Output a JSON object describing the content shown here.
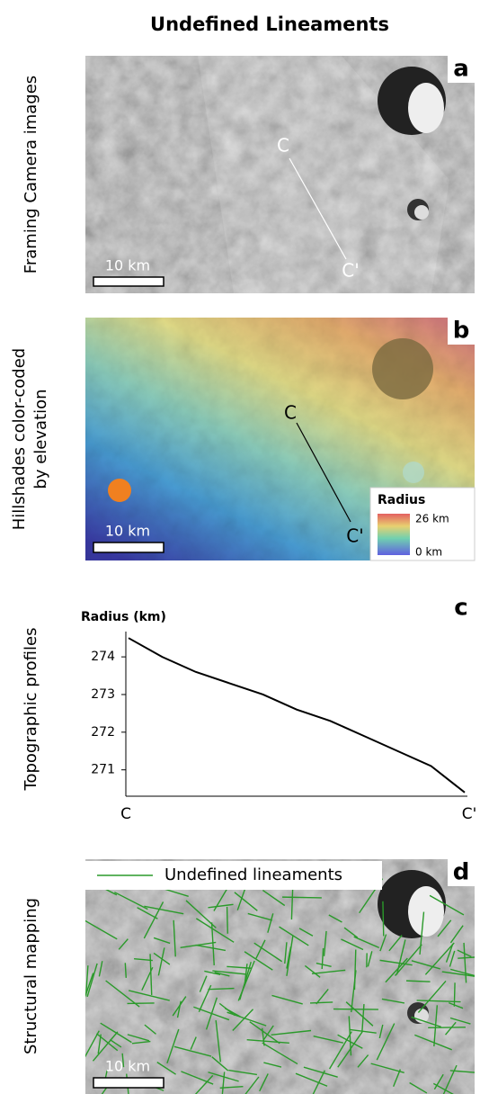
{
  "title": "Undefined Lineaments",
  "panels": [
    {
      "label": "a",
      "side_label": "Framing Camera images",
      "scale_bar": "10 km",
      "profile_start": "C",
      "profile_end": "C'"
    },
    {
      "label": "b",
      "side_label": [
        "Hillshades color-coded",
        "by elevation"
      ],
      "scale_bar": "10 km",
      "profile_start": "C",
      "profile_end": "C'",
      "legend": {
        "title": "Radius",
        "max": "26 km",
        "min": "0 km"
      }
    },
    {
      "label": "c",
      "side_label": "Topographic profiles"
    },
    {
      "label": "d",
      "side_label": "Structural mapping",
      "scale_bar": "10 km",
      "legend": "Undefined lineaments"
    }
  ],
  "chart_data": {
    "type": "line",
    "y_label": "Radius (km)",
    "categories": [
      "C",
      null,
      null,
      null,
      null,
      null,
      null,
      null,
      null,
      null,
      "C'"
    ],
    "values": [
      274.5,
      274.0,
      273.6,
      273.3,
      273.0,
      272.6,
      272.3,
      271.9,
      271.5,
      271.1,
      270.4
    ],
    "color": "#000000",
    "ylim": [
      270.3,
      274.6
    ],
    "yticks": [
      271,
      272,
      273,
      274
    ]
  }
}
